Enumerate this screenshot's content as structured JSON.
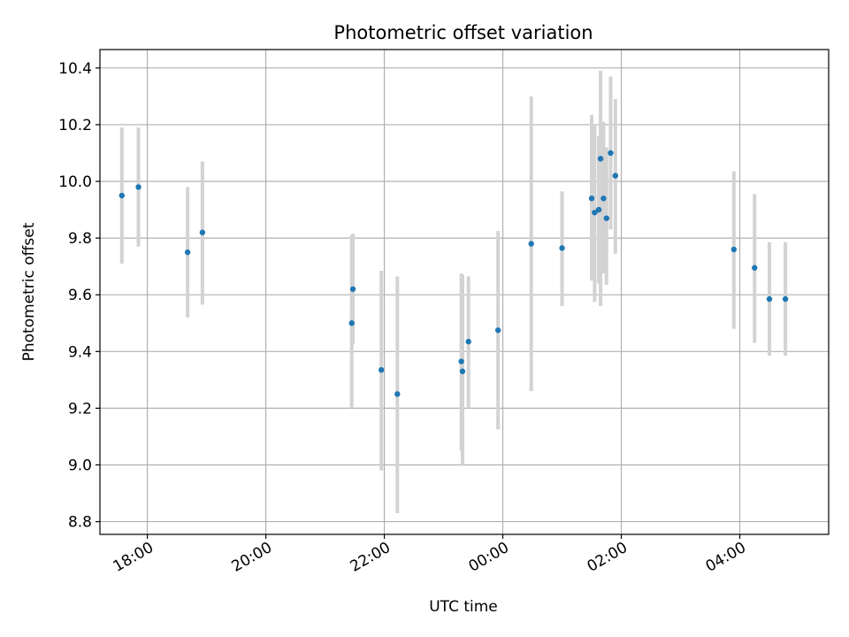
{
  "chart_data": {
    "type": "scatter",
    "title": "Photometric offset variation",
    "xlabel": "UTC time",
    "ylabel": "Photometric offset",
    "x_unit": "hours",
    "xlim": [
      17.2,
      29.5
    ],
    "ylim": [
      8.755,
      10.465
    ],
    "x_ticks": [
      {
        "value": 18,
        "label": "18:00"
      },
      {
        "value": 20,
        "label": "20:00"
      },
      {
        "value": 22,
        "label": "22:00"
      },
      {
        "value": 24,
        "label": "00:00"
      },
      {
        "value": 26,
        "label": "02:00"
      },
      {
        "value": 28,
        "label": "04:00"
      }
    ],
    "y_ticks": [
      {
        "value": 8.8,
        "label": "8.8"
      },
      {
        "value": 9.0,
        "label": "9.0"
      },
      {
        "value": 9.2,
        "label": "9.2"
      },
      {
        "value": 9.4,
        "label": "9.4"
      },
      {
        "value": 9.6,
        "label": "9.6"
      },
      {
        "value": 9.8,
        "label": "9.8"
      },
      {
        "value": 10.0,
        "label": "10.0"
      },
      {
        "value": 10.2,
        "label": "10.2"
      },
      {
        "value": 10.4,
        "label": "10.4"
      }
    ],
    "grid": true,
    "colors": {
      "marker": "#1f77b4",
      "errorbar": "#d3d3d3",
      "grid": "#b0b0b0"
    },
    "points": [
      {
        "x": 17.57,
        "y": 9.95,
        "lo": 9.71,
        "hi": 10.19
      },
      {
        "x": 17.85,
        "y": 9.98,
        "lo": 9.77,
        "hi": 10.19
      },
      {
        "x": 18.68,
        "y": 9.75,
        "lo": 9.52,
        "hi": 9.98
      },
      {
        "x": 18.93,
        "y": 9.82,
        "lo": 9.565,
        "hi": 10.07
      },
      {
        "x": 21.45,
        "y": 9.5,
        "lo": 9.2,
        "hi": 9.81
      },
      {
        "x": 21.47,
        "y": 9.62,
        "lo": 9.425,
        "hi": 9.815
      },
      {
        "x": 21.95,
        "y": 9.335,
        "lo": 8.98,
        "hi": 9.685
      },
      {
        "x": 22.22,
        "y": 9.25,
        "lo": 8.83,
        "hi": 9.665
      },
      {
        "x": 23.3,
        "y": 9.365,
        "lo": 9.05,
        "hi": 9.675
      },
      {
        "x": 23.32,
        "y": 9.33,
        "lo": 9.0,
        "hi": 9.67
      },
      {
        "x": 23.42,
        "y": 9.435,
        "lo": 9.2,
        "hi": 9.665
      },
      {
        "x": 23.92,
        "y": 9.475,
        "lo": 9.125,
        "hi": 9.825
      },
      {
        "x": 24.48,
        "y": 9.78,
        "lo": 9.26,
        "hi": 10.3
      },
      {
        "x": 25.0,
        "y": 9.765,
        "lo": 9.56,
        "hi": 9.965
      },
      {
        "x": 25.5,
        "y": 9.94,
        "lo": 9.65,
        "hi": 10.235
      },
      {
        "x": 25.55,
        "y": 9.89,
        "lo": 9.575,
        "hi": 10.2
      },
      {
        "x": 25.62,
        "y": 9.9,
        "lo": 9.64,
        "hi": 10.16
      },
      {
        "x": 25.65,
        "y": 10.08,
        "lo": 9.56,
        "hi": 10.39
      },
      {
        "x": 25.7,
        "y": 9.94,
        "lo": 9.675,
        "hi": 10.21
      },
      {
        "x": 25.75,
        "y": 9.87,
        "lo": 9.635,
        "hi": 10.12
      },
      {
        "x": 25.82,
        "y": 10.1,
        "lo": 9.83,
        "hi": 10.37
      },
      {
        "x": 25.9,
        "y": 10.02,
        "lo": 9.745,
        "hi": 10.29
      },
      {
        "x": 27.9,
        "y": 9.76,
        "lo": 9.48,
        "hi": 10.035
      },
      {
        "x": 28.25,
        "y": 9.695,
        "lo": 9.43,
        "hi": 9.955
      },
      {
        "x": 28.5,
        "y": 9.585,
        "lo": 9.385,
        "hi": 9.785
      },
      {
        "x": 28.77,
        "y": 9.585,
        "lo": 9.385,
        "hi": 9.785
      }
    ]
  }
}
